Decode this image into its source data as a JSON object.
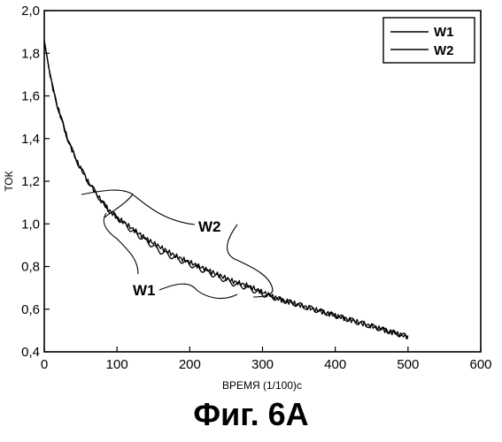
{
  "chart_data": {
    "type": "line",
    "title": "",
    "xlabel": "ВРЕМЯ (1/100)с",
    "ylabel": "ТОК",
    "xlim": [
      0,
      600
    ],
    "ylim": [
      0.4,
      2.0
    ],
    "x_ticks": [
      "0",
      "100",
      "200",
      "300",
      "400",
      "500",
      "600"
    ],
    "y_ticks": [
      "0,4",
      "0,6",
      "0,8",
      "1,0",
      "1,2",
      "1,4",
      "1,6",
      "1,8",
      "2,0"
    ],
    "grid": false,
    "legend_position": "top-right",
    "x": [
      0,
      10,
      20,
      30,
      40,
      50,
      60,
      70,
      80,
      90,
      100,
      120,
      140,
      160,
      180,
      200,
      220,
      240,
      260,
      280,
      300,
      320,
      340,
      360,
      380,
      400,
      420,
      440,
      460,
      480,
      500
    ],
    "series": [
      {
        "name": "W1",
        "values": [
          1.86,
          1.66,
          1.53,
          1.42,
          1.33,
          1.26,
          1.2,
          1.15,
          1.1,
          1.06,
          1.03,
          0.97,
          0.92,
          0.87,
          0.84,
          0.81,
          0.78,
          0.75,
          0.72,
          0.7,
          0.67,
          0.65,
          0.63,
          0.61,
          0.59,
          0.57,
          0.55,
          0.53,
          0.51,
          0.49,
          0.47
        ]
      },
      {
        "name": "W2",
        "values": [
          1.86,
          1.66,
          1.53,
          1.42,
          1.33,
          1.26,
          1.2,
          1.15,
          1.1,
          1.06,
          1.03,
          0.98,
          0.93,
          0.89,
          0.85,
          0.82,
          0.79,
          0.76,
          0.73,
          0.71,
          0.68,
          0.65,
          0.63,
          0.61,
          0.59,
          0.57,
          0.55,
          0.53,
          0.51,
          0.49,
          0.47
        ]
      }
    ],
    "annotations": [
      "W2",
      "W1"
    ]
  },
  "caption": "Фиг. 6А"
}
